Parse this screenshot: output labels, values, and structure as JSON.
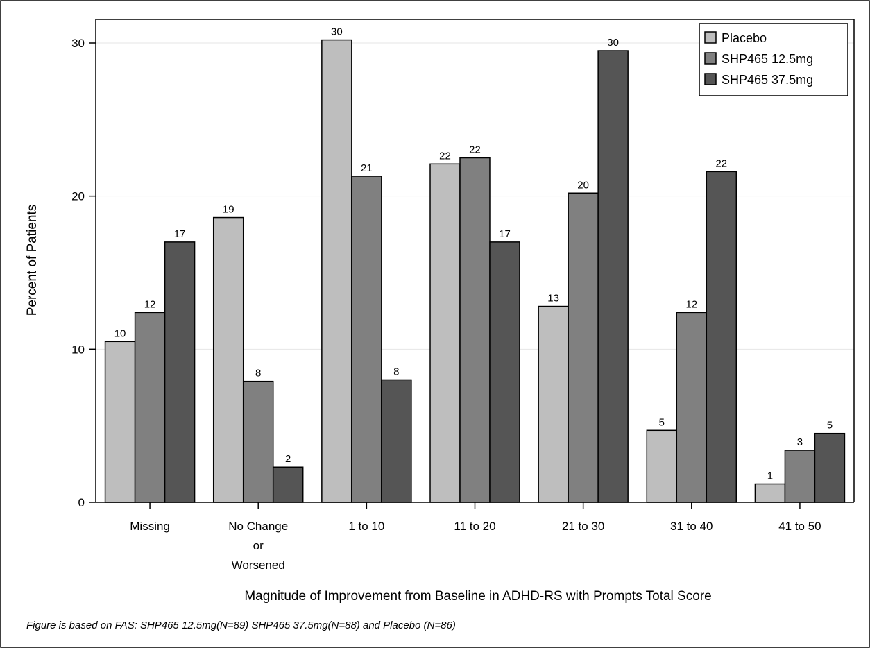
{
  "chart_data": {
    "type": "bar",
    "categories": [
      [
        "Missing"
      ],
      [
        "No Change",
        "or",
        "Worsened"
      ],
      [
        "1 to 10"
      ],
      [
        "11 to 20"
      ],
      [
        "21 to 30"
      ],
      [
        "31 to 40"
      ],
      [
        "41 to 50"
      ]
    ],
    "series": [
      {
        "name": "Placebo",
        "color": "#bebebe",
        "values": [
          10.5,
          18.6,
          30.2,
          22.1,
          12.8,
          4.7,
          1.2
        ],
        "labels": [
          "10",
          "19",
          "30",
          "22",
          "13",
          "5",
          "1"
        ]
      },
      {
        "name": "SHP465 12.5mg",
        "color": "#808080",
        "values": [
          12.4,
          7.9,
          21.3,
          22.5,
          20.2,
          12.4,
          3.4
        ],
        "labels": [
          "12",
          "8",
          "21",
          "22",
          "20",
          "12",
          "3"
        ]
      },
      {
        "name": "SHP465 37.5mg",
        "color": "#555555",
        "values": [
          17.0,
          2.3,
          8.0,
          17.0,
          29.5,
          21.6,
          4.5
        ],
        "labels": [
          "17",
          "2",
          "8",
          "17",
          "30",
          "22",
          "5"
        ]
      }
    ],
    "xlabel": "Magnitude of Improvement from Baseline in ADHD-RS with Prompts Total Score",
    "ylabel": "Percent of Patients",
    "ylim": [
      0,
      30
    ],
    "yticks": [
      "0",
      "10",
      "20",
      "30"
    ],
    "ytick_values": [
      0,
      10,
      20,
      30
    ],
    "grid": true,
    "legend_position": "top-right",
    "footnote": "Figure is based on FAS: SHP465 12.5mg(N=89) SHP465 37.5mg(N=88) and Placebo (N=86)"
  }
}
